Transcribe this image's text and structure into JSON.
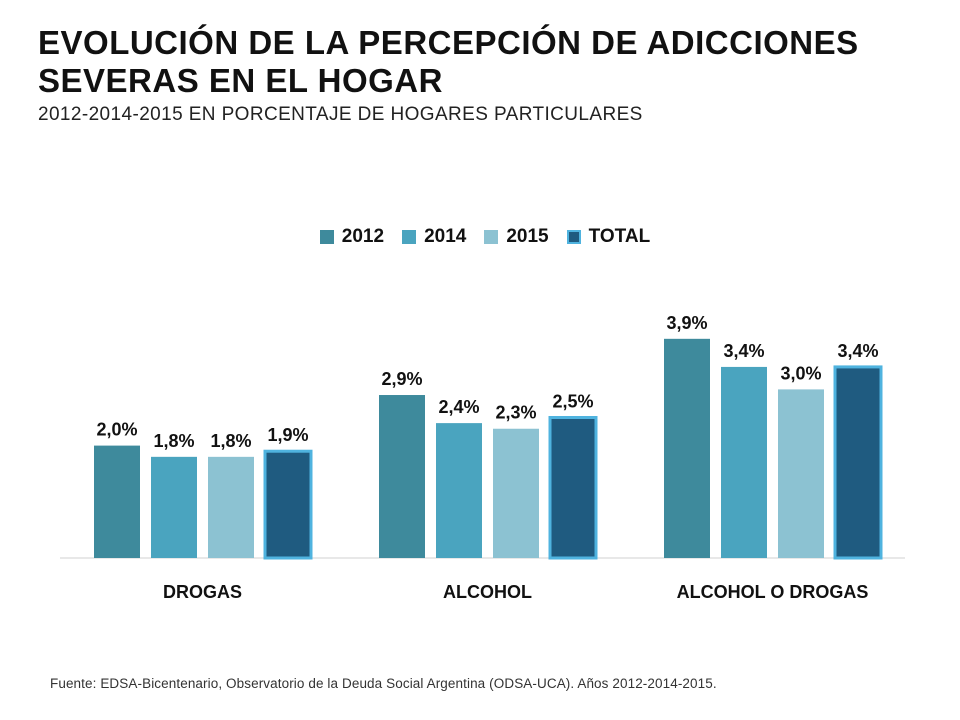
{
  "header": {
    "title": "EVOLUCIÓN DE LA PERCEPCIÓN DE ADICCIONES SEVERAS EN EL HOGAR",
    "subtitle": "2012-2014-2015 EN PORCENTAJE DE HOGARES PARTICULARES"
  },
  "footer": {
    "source": "Fuente: EDSA-Bicentenario, Observatorio de la Deuda Social Argentina (ODSA-UCA). Años 2012-2014-2015."
  },
  "chart_data": {
    "type": "bar",
    "categories": [
      "DROGAS",
      "ALCOHOL",
      "ALCOHOL O DROGAS"
    ],
    "series": [
      {
        "name": "2012",
        "values": [
          2.0,
          2.9,
          3.9
        ],
        "labels": [
          "2,0%",
          "2,9%",
          "3,9%"
        ],
        "color": "#3e8a9c"
      },
      {
        "name": "2014",
        "values": [
          1.8,
          2.4,
          3.4
        ],
        "labels": [
          "1,8%",
          "2,4%",
          "3,4%"
        ],
        "color": "#4aa4bf"
      },
      {
        "name": "2015",
        "values": [
          1.8,
          2.3,
          3.0
        ],
        "labels": [
          "1,8%",
          "2,3%",
          "3,0%"
        ],
        "color": "#8cc2d2"
      },
      {
        "name": "TOTAL",
        "values": [
          1.9,
          2.5,
          3.4
        ],
        "labels": [
          "1,9%",
          "2,5%",
          "3,4%"
        ],
        "color": "#1f5b80",
        "border": "#4fb3df"
      }
    ],
    "legend_position": "top-center",
    "grid": false,
    "ylim": [
      0,
      4.2
    ]
  }
}
